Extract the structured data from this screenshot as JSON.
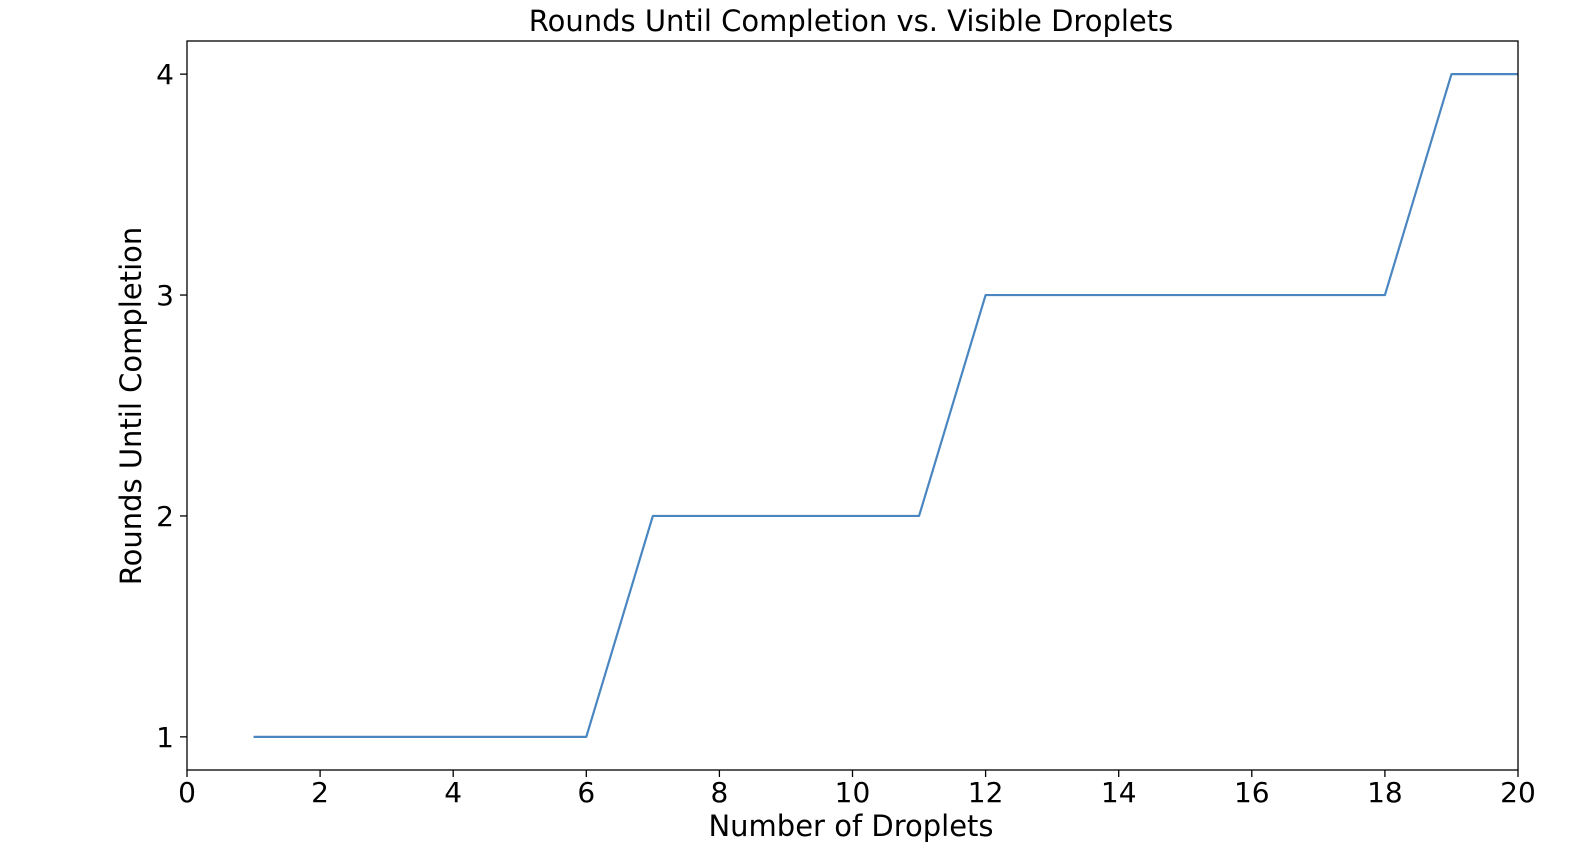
{
  "chart_data": {
    "type": "line",
    "title": "Rounds Until Completion vs. Visible Droplets",
    "xlabel": "Number of Droplets",
    "ylabel": "Rounds Until Completion",
    "xlim": [
      0,
      20
    ],
    "ylim": [
      0.85,
      4.15
    ],
    "xticks": [
      0,
      2,
      4,
      6,
      8,
      10,
      12,
      14,
      16,
      18,
      20
    ],
    "yticks": [
      1,
      2,
      3,
      4
    ],
    "grid": false,
    "series": [
      {
        "color": "#4a86c0",
        "x": [
          1,
          2,
          3,
          4,
          5,
          6,
          7,
          8,
          9,
          10,
          11,
          12,
          13,
          14,
          15,
          16,
          17,
          18,
          19,
          20
        ],
        "y": [
          1,
          1,
          1,
          1,
          1,
          1,
          2,
          2,
          2,
          2,
          2,
          3,
          3,
          3,
          3,
          3,
          3,
          3,
          4,
          4
        ]
      }
    ]
  }
}
